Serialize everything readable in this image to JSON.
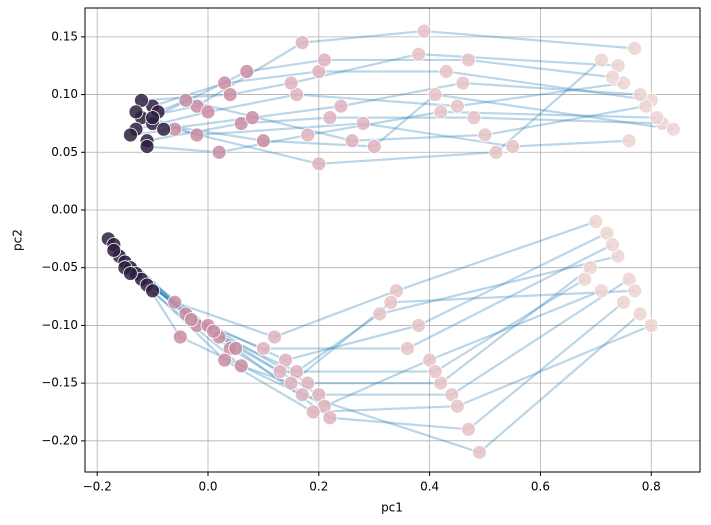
{
  "chart_data": {
    "type": "scatter",
    "xlabel": "pc1",
    "ylabel": "pc2",
    "xlim": [
      -0.222,
      0.888
    ],
    "ylim": [
      -0.227,
      0.175
    ],
    "xticks": [
      {
        "value": -0.2,
        "label": "−0.2"
      },
      {
        "value": 0,
        "label": "0.0"
      },
      {
        "value": 0.2,
        "label": "0.2"
      },
      {
        "value": 0.4,
        "label": "0.4"
      },
      {
        "value": 0.6,
        "label": "0.6"
      },
      {
        "value": 0.8,
        "label": "0.8"
      }
    ],
    "yticks": [
      {
        "value": 0.15,
        "label": "0.15"
      },
      {
        "value": 0.1,
        "label": "0.10"
      },
      {
        "value": 0.05,
        "label": "0.05"
      },
      {
        "value": 0,
        "label": "0.00"
      },
      {
        "value": -0.05,
        "label": "−0.05"
      },
      {
        "value": -0.1,
        "label": "−0.10"
      },
      {
        "value": -0.15,
        "label": "−0.15"
      },
      {
        "value": -0.2,
        "label": "−0.20"
      }
    ],
    "grid": true,
    "line_color": "#1f77b4",
    "point_colors": [
      "#2d1e3e",
      "#c98da3",
      "#deb3bd",
      "#e6c3c6",
      "#edd3d1"
    ],
    "series": [
      {
        "x": [
          -0.12,
          -0.02,
          0.17,
          0.39,
          0.77
        ],
        "values": [
          0.08,
          0.09,
          0.145,
          0.155,
          0.14
        ]
      },
      {
        "x": [
          -0.1,
          0.03,
          0.2,
          0.43,
          0.8
        ],
        "values": [
          0.09,
          0.11,
          0.12,
          0.12,
          0.095
        ]
      },
      {
        "x": [
          -0.13,
          0.0,
          0.16,
          0.45,
          0.75
        ],
        "values": [
          0.07,
          0.085,
          0.1,
          0.09,
          0.11
        ]
      },
      {
        "x": [
          -0.11,
          0.06,
          0.22,
          0.48,
          0.82
        ],
        "values": [
          0.06,
          0.075,
          0.08,
          0.08,
          0.075
        ]
      },
      {
        "x": [
          -0.09,
          -0.04,
          0.26,
          0.5,
          0.79
        ],
        "values": [
          0.085,
          0.095,
          0.06,
          0.065,
          0.09
        ]
      },
      {
        "x": [
          -0.14,
          -0.06,
          0.2,
          0.52,
          0.71
        ],
        "values": [
          0.065,
          0.07,
          0.04,
          0.05,
          0.13
        ]
      },
      {
        "x": [
          -0.1,
          0.1,
          0.3,
          0.41,
          0.84
        ],
        "values": [
          0.075,
          0.06,
          0.055,
          0.1,
          0.07
        ]
      },
      {
        "x": [
          -0.12,
          0.04,
          0.15,
          0.38,
          0.74
        ],
        "values": [
          0.095,
          0.1,
          0.11,
          0.135,
          0.125
        ]
      },
      {
        "x": [
          -0.08,
          0.08,
          0.24,
          0.46,
          0.78
        ],
        "values": [
          0.07,
          0.08,
          0.09,
          0.11,
          0.1
        ]
      },
      {
        "x": [
          -0.13,
          -0.02,
          0.28,
          0.55,
          0.76
        ],
        "values": [
          0.085,
          0.065,
          0.075,
          0.055,
          0.06
        ]
      },
      {
        "x": [
          -0.11,
          0.02,
          0.18,
          0.42,
          0.81
        ],
        "values": [
          0.055,
          0.05,
          0.065,
          0.085,
          0.08
        ]
      },
      {
        "x": [
          -0.1,
          0.07,
          0.21,
          0.47,
          0.73
        ],
        "values": [
          0.08,
          0.12,
          0.13,
          0.13,
          0.115
        ]
      },
      {
        "x": [
          -0.18,
          -0.06,
          0.12,
          0.34,
          0.7
        ],
        "values": [
          -0.025,
          -0.08,
          -0.11,
          -0.07,
          -0.01
        ]
      },
      {
        "x": [
          -0.17,
          -0.04,
          0.14,
          0.38,
          0.72
        ],
        "values": [
          -0.03,
          -0.09,
          -0.13,
          -0.1,
          -0.02
        ]
      },
      {
        "x": [
          -0.16,
          -0.02,
          0.16,
          0.31,
          0.74
        ],
        "values": [
          -0.04,
          -0.1,
          -0.14,
          -0.09,
          -0.04
        ]
      },
      {
        "x": [
          -0.15,
          0.0,
          0.18,
          0.42,
          0.69
        ],
        "values": [
          -0.045,
          -0.1,
          -0.15,
          -0.15,
          -0.05
        ]
      },
      {
        "x": [
          -0.14,
          0.02,
          0.2,
          0.44,
          0.76
        ],
        "values": [
          -0.05,
          -0.11,
          -0.16,
          -0.16,
          -0.06
        ]
      },
      {
        "x": [
          -0.13,
          0.04,
          0.21,
          0.4,
          0.71
        ],
        "values": [
          -0.055,
          -0.12,
          -0.17,
          -0.13,
          -0.07
        ]
      },
      {
        "x": [
          -0.12,
          0.05,
          0.22,
          0.47,
          0.75
        ],
        "values": [
          -0.06,
          -0.12,
          -0.18,
          -0.19,
          -0.08
        ]
      },
      {
        "x": [
          -0.11,
          -0.05,
          0.17,
          0.49,
          0.78
        ],
        "values": [
          -0.065,
          -0.11,
          -0.16,
          -0.21,
          -0.09
        ]
      },
      {
        "x": [
          -0.1,
          0.03,
          0.19,
          0.45,
          0.8
        ],
        "values": [
          -0.07,
          -0.13,
          -0.175,
          -0.17,
          -0.1
        ]
      },
      {
        "x": [
          -0.17,
          -0.03,
          0.1,
          0.36,
          0.73
        ],
        "values": [
          -0.035,
          -0.095,
          -0.12,
          -0.12,
          -0.03
        ]
      },
      {
        "x": [
          -0.15,
          0.01,
          0.13,
          0.41,
          0.68
        ],
        "values": [
          -0.05,
          -0.105,
          -0.14,
          -0.14,
          -0.06
        ]
      },
      {
        "x": [
          -0.14,
          0.06,
          0.15,
          0.33,
          0.77
        ],
        "values": [
          -0.055,
          -0.135,
          -0.15,
          -0.08,
          -0.07
        ]
      }
    ]
  }
}
